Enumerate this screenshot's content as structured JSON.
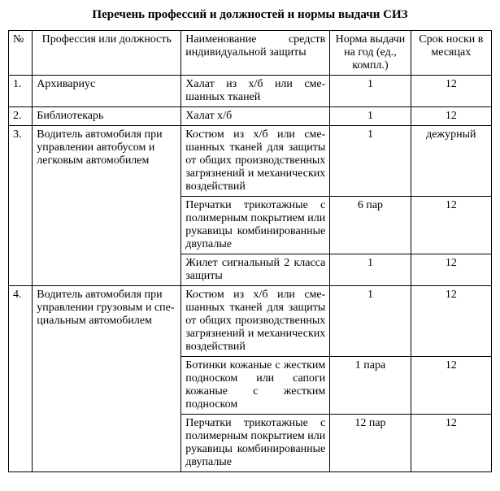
{
  "title": "Перечень профессий и должностей и нормы выдачи СИЗ",
  "headers": {
    "num": "№",
    "profession": "Профессия или должность",
    "item": "Наименование средств индивидуальной защиты",
    "norm": "Норма выда­чи на год (ед., компл.)",
    "wear": "Срок носки в месяцах"
  },
  "r1": {
    "num": "1.",
    "prof": "Архивариус",
    "item": "Халат из х/б или сме­шанных тканей",
    "norm": "1",
    "wear": "12"
  },
  "r2": {
    "num": "2.",
    "prof": "Библиотекарь",
    "item": "Халат х/б",
    "norm": "1",
    "wear": "12"
  },
  "r3": {
    "num": "3.",
    "prof": "Водитель автомобиля при управлении автобусом и лег­ковым автомобилем",
    "a": {
      "item": "Костюм из х/б или сме­шанных тканей для за­щиты от общих произ­водственных загрязне­ний и механических воз­действий",
      "norm": "1",
      "wear": "дежурный"
    },
    "b": {
      "item": "Перчатки трикотажные с полимерным покрытием или рукавицы комбини­рованные двупалые",
      "norm": "6 пар",
      "wear": "12"
    },
    "c": {
      "item": "Жилет сигнальный 2 класса защиты",
      "norm": "1",
      "wear": "12"
    }
  },
  "r4": {
    "num": "4.",
    "prof": "Водитель автомобиля при управлении грузовым и спе­циальным автомобилем",
    "a": {
      "item": "Костюм из х/б или сме­шанных тканей для за­щиты от общих произ­водственных загрязне­ний и механических воз­действий",
      "norm": "1",
      "wear": "12"
    },
    "b": {
      "item": "Ботинки кожаные с жестким подноском или сапоги кожаные с жест­ким подноском",
      "norm": "1 пара",
      "wear": "12"
    },
    "c": {
      "item": "Перчатки трикотажные с полимерным покрытием или рукавицы комбини­рованные двупалые",
      "norm": "12 пар",
      "wear": "12"
    }
  }
}
